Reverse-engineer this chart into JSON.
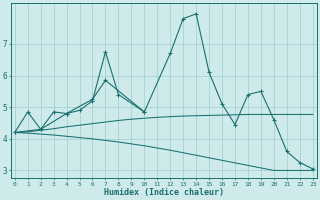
{
  "xlabel": "Humidex (Indice chaleur)",
  "bg_color": "#ceeaea",
  "line_color": "#1a7070",
  "grid_color": "#9dcece",
  "x": [
    0,
    1,
    2,
    3,
    4,
    5,
    6,
    7,
    8,
    9,
    10,
    11,
    12,
    13,
    14,
    15,
    16,
    17,
    18,
    19,
    20,
    21,
    22,
    23
  ],
  "line1": [
    4.2,
    4.85,
    4.3,
    4.85,
    4.8,
    4.9,
    5.2,
    6.75,
    5.4,
    4.85,
    6.7,
    7.8,
    7.95,
    6.1,
    5.1,
    4.45,
    5.4,
    5.5,
    4.6,
    3.6,
    3.25,
    3.05
  ],
  "line1_x": [
    0,
    1,
    2,
    3,
    4,
    5,
    6,
    7,
    8,
    10,
    12,
    13,
    14,
    15,
    16,
    17,
    18,
    19,
    20,
    21,
    22,
    23
  ],
  "line2": [
    4.2,
    4.3,
    4.8,
    5.25,
    5.85,
    4.85
  ],
  "line2_x": [
    0,
    2,
    4,
    6,
    7,
    10
  ],
  "line3": [
    4.2,
    4.22,
    4.27,
    4.32,
    4.38,
    4.43,
    4.48,
    4.53,
    4.58,
    4.62,
    4.65,
    4.68,
    4.7,
    4.72,
    4.73,
    4.74,
    4.75,
    4.76,
    4.77,
    4.77,
    4.77,
    4.77,
    4.77,
    4.77
  ],
  "line4": [
    4.2,
    4.18,
    4.15,
    4.12,
    4.08,
    4.04,
    4.0,
    3.95,
    3.9,
    3.84,
    3.78,
    3.71,
    3.64,
    3.56,
    3.48,
    3.4,
    3.32,
    3.24,
    3.16,
    3.08,
    3.0,
    3.0,
    3.0,
    3.0
  ],
  "ylim": [
    2.75,
    8.3
  ],
  "xlim": [
    -0.3,
    23.3
  ]
}
